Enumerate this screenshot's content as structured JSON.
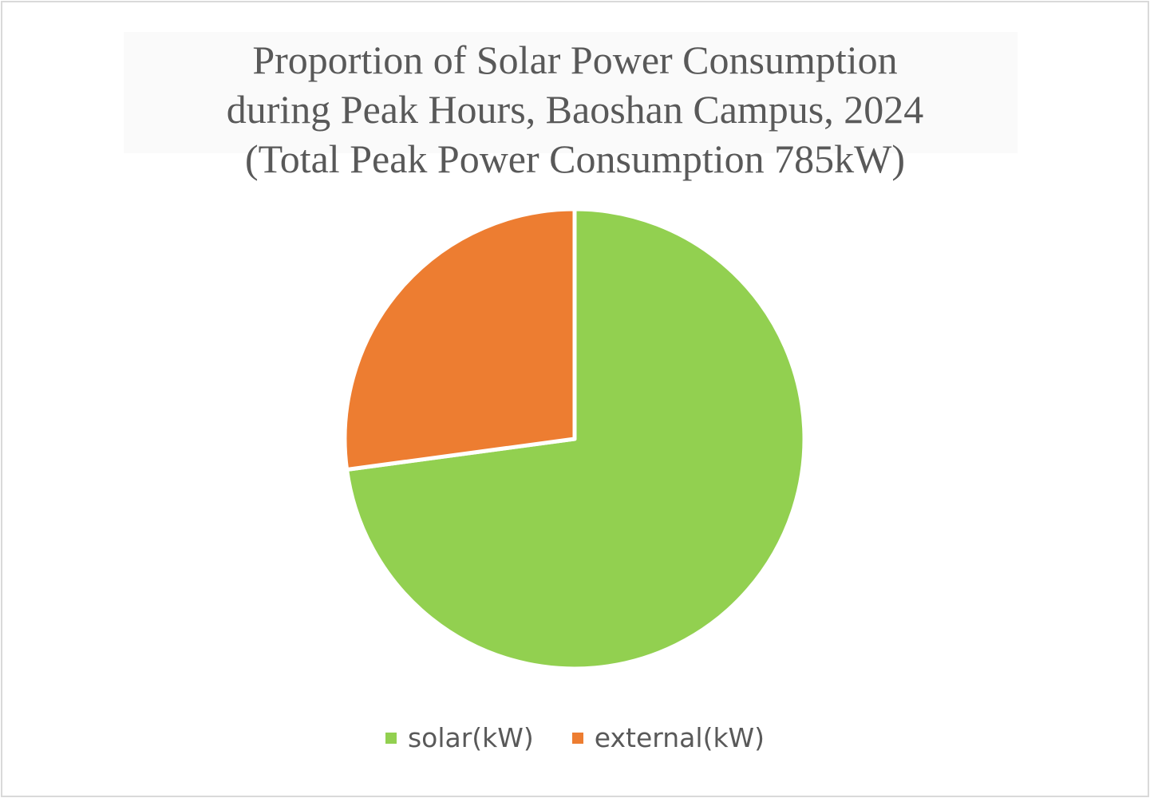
{
  "chart_data": {
    "type": "pie",
    "title": [
      "Proportion of Solar Power Consumption",
      "during Peak Hours, Baoshan Campus, 2024",
      "(Total Peak Power Consumption 785kW)"
    ],
    "categories": [
      "solar(kW)",
      "external(kW)"
    ],
    "values": [
      572,
      213
    ],
    "colors": [
      "#92d050",
      "#ed7d31"
    ],
    "start_angle": "12 o'clock, clockwise",
    "legend": "bottom"
  }
}
